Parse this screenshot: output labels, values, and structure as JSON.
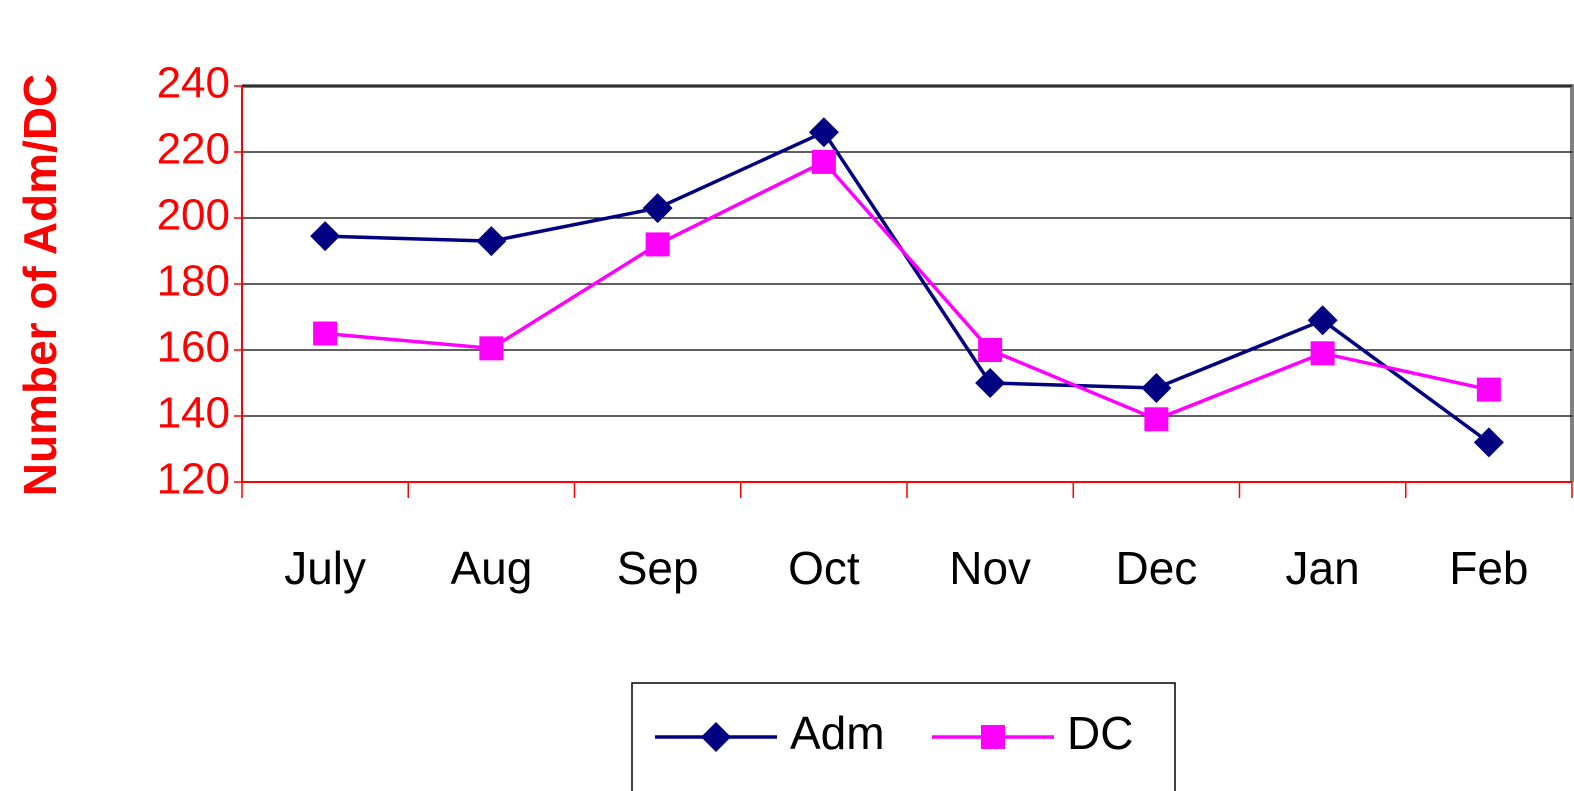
{
  "chart_data": {
    "type": "line",
    "y_label": "Number of Adm/DC",
    "categories": [
      "July",
      "Aug",
      "Sep",
      "Oct",
      "Nov",
      "Dec",
      "Jan",
      "Feb"
    ],
    "series": [
      {
        "name": "Adm",
        "color": "#000080",
        "marker": "diamond",
        "values": [
          194.5,
          193,
          203,
          226,
          150,
          148.5,
          169,
          132
        ]
      },
      {
        "name": "DC",
        "color": "#ff00ff",
        "marker": "square",
        "values": [
          165,
          160.5,
          192,
          217,
          160,
          139,
          159,
          148
        ]
      }
    ],
    "ylim": [
      120,
      240
    ],
    "yticks": [
      120,
      140,
      160,
      180,
      200,
      220,
      240
    ],
    "grid": true,
    "legend": "bottom",
    "axis_color": "#ff0000"
  }
}
